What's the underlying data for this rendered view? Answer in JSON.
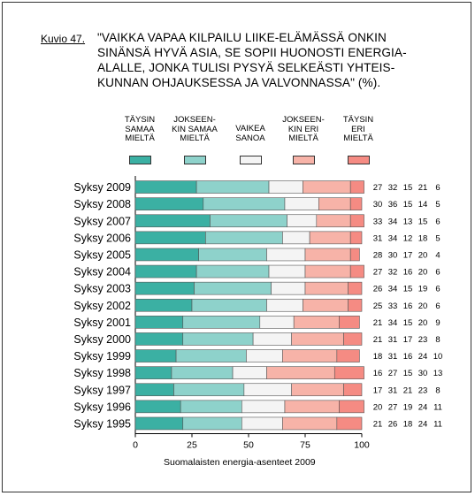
{
  "figure_label": "Kuvio 47.",
  "title_lines": [
    "\"VAIKKA VAPAA KILPAILU LIIKE-ELÄMÄSSÄ ONKIN",
    "SINÄNSÄ HYVÄ ASIA, SE SOPII HUONOSTI ENERGIA-",
    "ALALLE, JONKA TULISI PYSYÄ SELKEÄSTI YHTEIS-",
    "KUNNAN OHJAUKSESSA JA VALVONNASSA\" (%)."
  ],
  "legend": [
    {
      "lines": [
        "TÄYSIN",
        "SAMAA",
        "MIELTÄ"
      ],
      "color": "#3BB0A3"
    },
    {
      "lines": [
        "JOKSEEN-",
        "KIN SAMAA",
        "MIELTÄ"
      ],
      "color": "#8ED2CB"
    },
    {
      "lines": [
        "VAIKEA",
        "SANOA"
      ],
      "color": "#F4F4F4"
    },
    {
      "lines": [
        "JOKSEEN-",
        "KIN ERI",
        "MIELTÄ"
      ],
      "color": "#F7B3A8"
    },
    {
      "lines": [
        "TÄYSIN",
        "ERI",
        "MIELTÄ"
      ],
      "color": "#F58B83"
    }
  ],
  "footer": "Suomalaisten energia-asenteet 2009",
  "chart_data": {
    "type": "bar",
    "orientation": "horizontal",
    "stacked": true,
    "categories": [
      "Syksy 2009",
      "Syksy 2008",
      "Syksy 2007",
      "Syksy 2006",
      "Syksy 2005",
      "Syksy 2004",
      "Syksy 2003",
      "Syksy 2002",
      "Syksy 2001",
      "Syksy 2000",
      "Syksy 1999",
      "Syksy 1998",
      "Syksy 1997",
      "Syksy 1996",
      "Syksy 1995"
    ],
    "series": [
      {
        "name": "TÄYSIN SAMAA MIELTÄ",
        "color": "#3BB0A3",
        "values": [
          27,
          30,
          33,
          31,
          28,
          27,
          26,
          25,
          21,
          21,
          18,
          16,
          17,
          20,
          21
        ]
      },
      {
        "name": "JOKSEENKIN SAMAA MIELTÄ",
        "color": "#8ED2CB",
        "values": [
          32,
          36,
          34,
          34,
          30,
          32,
          34,
          33,
          34,
          31,
          31,
          27,
          31,
          27,
          26
        ]
      },
      {
        "name": "VAIKEA SANOA",
        "color": "#F4F4F4",
        "values": [
          15,
          15,
          13,
          12,
          17,
          16,
          15,
          16,
          15,
          17,
          16,
          15,
          21,
          19,
          18
        ]
      },
      {
        "name": "JOKSEENKIN ERI MIELTÄ",
        "color": "#F7B3A8",
        "values": [
          21,
          14,
          15,
          18,
          20,
          20,
          19,
          20,
          20,
          23,
          24,
          30,
          23,
          24,
          24
        ]
      },
      {
        "name": "TÄYSIN ERI MIELTÄ",
        "color": "#F58B83",
        "values": [
          6,
          5,
          6,
          5,
          4,
          6,
          6,
          6,
          9,
          8,
          10,
          13,
          8,
          11,
          11
        ]
      }
    ],
    "xlim": [
      0,
      100
    ],
    "xticks": [
      0,
      25,
      50,
      75,
      100
    ]
  }
}
